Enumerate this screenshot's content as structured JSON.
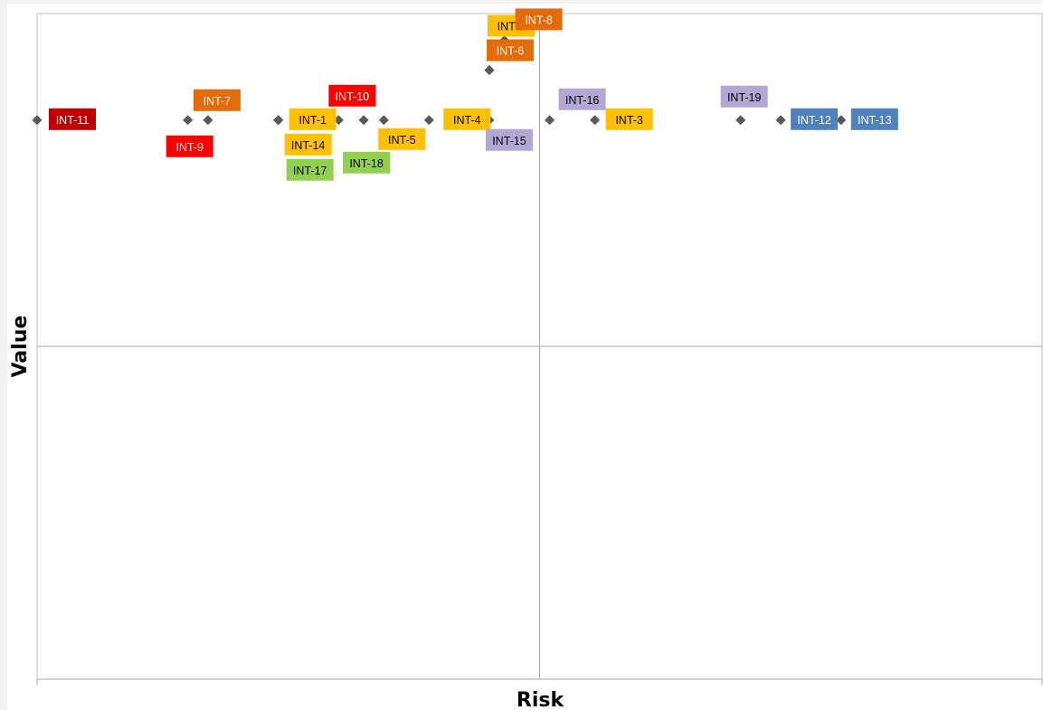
{
  "chart_data": {
    "type": "scatter",
    "title": "",
    "xlabel": "Risk",
    "ylabel": "Value",
    "xlim": [
      0,
      10
    ],
    "ylim": [
      0,
      10
    ],
    "grid": false,
    "quadrant_lines": {
      "x": 5,
      "y": 5
    },
    "points": [
      {
        "label": "INT-11",
        "x": 0.0,
        "y": 8.4,
        "color": "#c00000",
        "text_color": "#ffffff"
      },
      {
        "label": "INT-9",
        "x": 1.5,
        "y": 8.4,
        "color": "#ff0000",
        "text_color": "#ffffff"
      },
      {
        "label": "INT-7",
        "x": 1.7,
        "y": 8.4,
        "color": "#e36c09",
        "text_color": "#ffffff"
      },
      {
        "label": "INT-1",
        "x": 2.4,
        "y": 8.4,
        "color": "#ffc000",
        "text_color": "#000000"
      },
      {
        "label": "INT-14",
        "x": 2.4,
        "y": 8.4,
        "color": "#ffc000",
        "text_color": "#000000"
      },
      {
        "label": "INT-17",
        "x": 2.4,
        "y": 8.4,
        "color": "#92d050",
        "text_color": "#000000"
      },
      {
        "label": "INT-10",
        "x": 3.0,
        "y": 8.4,
        "color": "#ff0000",
        "text_color": "#ffffff"
      },
      {
        "label": "INT-18",
        "x": 3.25,
        "y": 8.4,
        "color": "#92d050",
        "text_color": "#000000"
      },
      {
        "label": "INT-5",
        "x": 3.45,
        "y": 8.4,
        "color": "#ffc000",
        "text_color": "#000000"
      },
      {
        "label": "INT-4",
        "x": 3.9,
        "y": 8.4,
        "color": "#ffc000",
        "text_color": "#000000"
      },
      {
        "label": "INT-15",
        "x": 4.5,
        "y": 8.4,
        "color": "#b4a7d6",
        "text_color": "#000000"
      },
      {
        "label": "INT-6",
        "x": 4.5,
        "y": 9.15,
        "color": "#e36c09",
        "text_color": "#ffffff"
      },
      {
        "label": "INT-2",
        "x": 4.5,
        "y": 9.15,
        "color": "#ffc000",
        "text_color": "#000000"
      },
      {
        "label": "INT-8",
        "x": 4.65,
        "y": 9.6,
        "color": "#e36c09",
        "text_color": "#ffffff"
      },
      {
        "label": "INT-16",
        "x": 5.1,
        "y": 8.4,
        "color": "#b4a7d6",
        "text_color": "#000000"
      },
      {
        "label": "INT-3",
        "x": 5.55,
        "y": 8.4,
        "color": "#ffc000",
        "text_color": "#000000"
      },
      {
        "label": "INT-19",
        "x": 7.0,
        "y": 8.4,
        "color": "#b4a7d6",
        "text_color": "#000000"
      },
      {
        "label": "INT-12",
        "x": 7.4,
        "y": 8.4,
        "color": "#4f81bd",
        "text_color": "#ffffff"
      },
      {
        "label": "INT-13",
        "x": 8.0,
        "y": 8.4,
        "color": "#4f81bd",
        "text_color": "#ffffff"
      }
    ]
  }
}
